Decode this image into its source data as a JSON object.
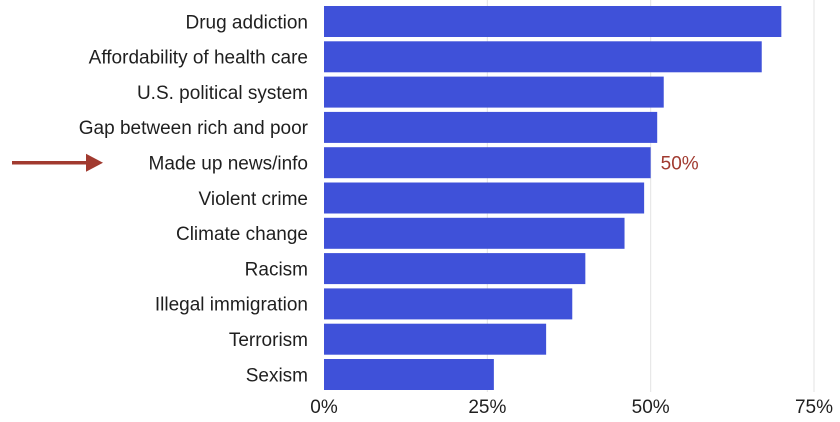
{
  "chart_data": {
    "type": "bar",
    "orientation": "horizontal",
    "categories": [
      "Drug addiction",
      "Affordability of health care",
      "U.S. political system",
      "Gap between rich and poor",
      "Made up news/info",
      "Violent crime",
      "Climate change",
      "Racism",
      "Illegal immigration",
      "Terrorism",
      "Sexism"
    ],
    "values": [
      70,
      67,
      52,
      51,
      50,
      49,
      46,
      40,
      38,
      34,
      26
    ],
    "xlim": [
      0,
      75
    ],
    "ticks": [
      0,
      25,
      50,
      75
    ],
    "tick_labels": [
      "0%",
      "25%",
      "50%",
      "75%"
    ],
    "grid": "vertical",
    "title": "",
    "xlabel": "",
    "ylabel": "",
    "highlight": {
      "category": "Made up news/info",
      "label": "50%",
      "marker": "arrow-icon"
    },
    "colors": {
      "bar": "#3f51d9",
      "highlight": "#a13a2f",
      "grid": "#e3e3e3",
      "text": "#1f1f1f"
    }
  }
}
